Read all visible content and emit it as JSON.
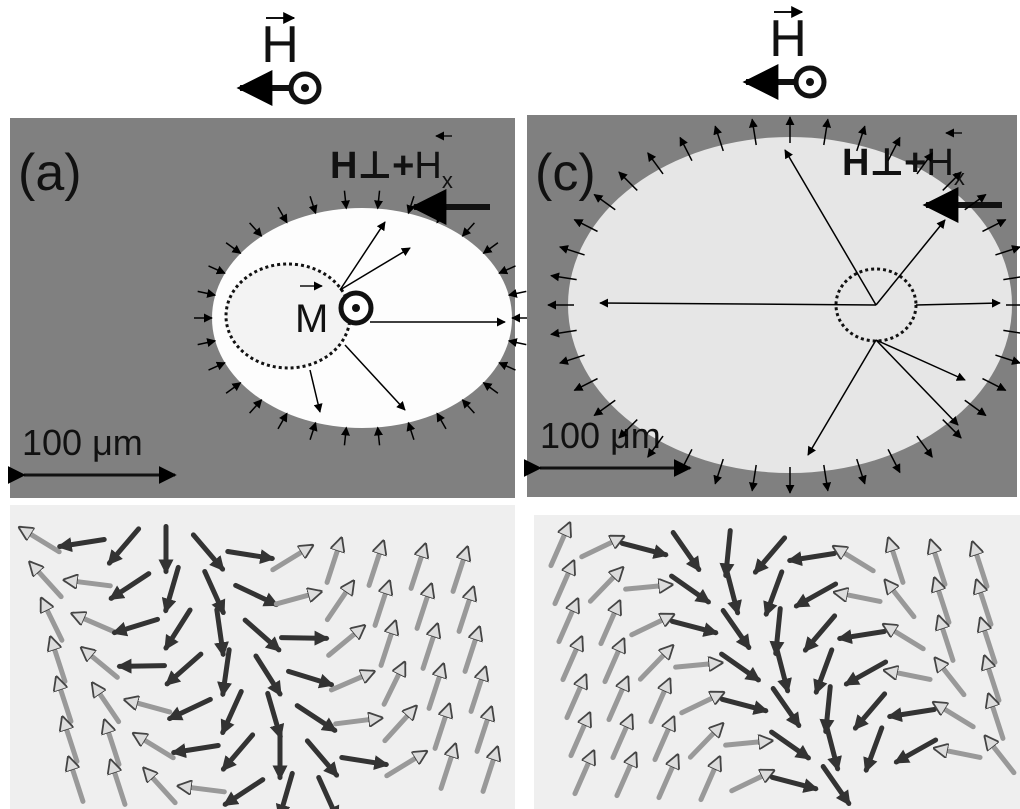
{
  "field_symbol": "H",
  "panels": [
    {
      "label": "(a)",
      "field_main": "H⊥+",
      "field_h": "H",
      "field_sub": "x",
      "scale": "100 μm",
      "moment": "M"
    },
    {
      "label": "(c)",
      "field_main": "H⊥+",
      "field_h": "H",
      "field_sub": "x",
      "scale": "100 μm"
    }
  ]
}
